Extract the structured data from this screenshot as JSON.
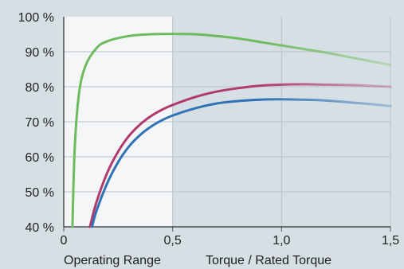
{
  "chart_data": {
    "type": "line",
    "xlim": [
      0,
      1.5
    ],
    "ylim": [
      40,
      100
    ],
    "x_ticks": [
      "0",
      "0,5",
      "1,0",
      "1,5"
    ],
    "y_ticks": [
      "40 %",
      "50 %",
      "60 %",
      "70 %",
      "80 %",
      "90 %",
      "100 %"
    ],
    "xlabel": "Torque / Rated Torque",
    "region_label": "Operating Range",
    "highlight_range": [
      0,
      0.5
    ],
    "grid": true,
    "series": [
      {
        "color": "#6dbb5c",
        "x": [
          0.04,
          0.05,
          0.07,
          0.1,
          0.15,
          0.2,
          0.3,
          0.4,
          0.5,
          0.6,
          0.7,
          0.8,
          0.9,
          1.0,
          1.1,
          1.2,
          1.3,
          1.4,
          1.5
        ],
        "y": [
          40,
          62,
          78,
          86,
          91,
          93,
          94.5,
          95,
          95.1,
          95,
          94.5,
          93.8,
          92.8,
          91.8,
          90.8,
          89.8,
          88.6,
          87.4,
          86.2
        ]
      },
      {
        "color": "#b23a6b",
        "x": [
          0.12,
          0.15,
          0.2,
          0.25,
          0.3,
          0.35,
          0.4,
          0.45,
          0.5,
          0.6,
          0.7,
          0.8,
          0.9,
          1.0,
          1.1,
          1.2,
          1.3,
          1.4,
          1.5
        ],
        "y": [
          40,
          47,
          55.5,
          61.5,
          66,
          69.2,
          71.6,
          73.4,
          74.8,
          77,
          78.6,
          79.6,
          80.3,
          80.6,
          80.7,
          80.6,
          80.5,
          80.3,
          80
        ]
      },
      {
        "color": "#2f72b5",
        "x": [
          0.13,
          0.15,
          0.2,
          0.25,
          0.3,
          0.35,
          0.4,
          0.45,
          0.5,
          0.6,
          0.7,
          0.8,
          0.9,
          1.0,
          1.1,
          1.2,
          1.3,
          1.4,
          1.5
        ],
        "y": [
          40,
          44.5,
          52.5,
          58.5,
          63,
          66.2,
          68.6,
          70.4,
          71.8,
          73.8,
          75.2,
          75.9,
          76.3,
          76.4,
          76.3,
          76.1,
          75.6,
          75.1,
          74.5
        ]
      }
    ]
  }
}
